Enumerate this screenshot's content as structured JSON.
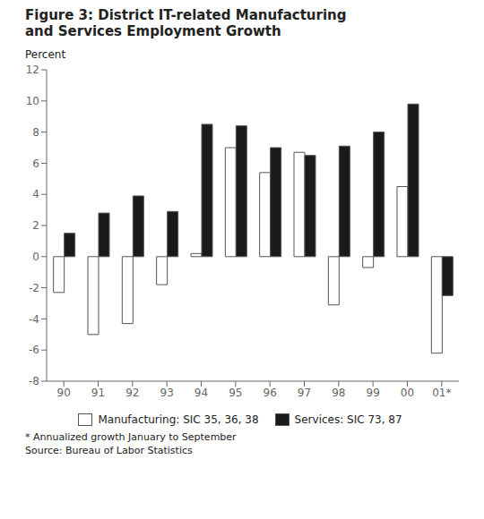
{
  "chart_data": {
    "type": "bar",
    "title": "Figure 3: District IT-related Manufacturing",
    "subtitle": "and Services Employment Growth",
    "y_label": "Percent",
    "categories": [
      "90",
      "91",
      "92",
      "93",
      "94",
      "95",
      "96",
      "97",
      "98",
      "99",
      "00",
      "01*"
    ],
    "series": [
      {
        "name": "Manufacturing: SIC 35, 36, 38",
        "color": "#ffffff",
        "values": [
          -2.3,
          -5.0,
          -4.3,
          -1.8,
          0.2,
          7.0,
          5.4,
          6.7,
          -3.1,
          -0.7,
          4.5,
          -6.2
        ]
      },
      {
        "name": "Services: SIC 73, 87",
        "color": "#1a1a1a",
        "values": [
          1.5,
          2.8,
          3.9,
          2.9,
          8.5,
          8.4,
          7.0,
          6.5,
          7.1,
          8.0,
          9.8,
          -2.5
        ]
      }
    ],
    "ylim": [
      -8,
      12
    ],
    "yticks": [
      -8,
      -6,
      -4,
      -2,
      0,
      2,
      4,
      6,
      8,
      10,
      12
    ],
    "grid": false,
    "legend": "bottom",
    "annotations": [
      "* Annualized growth January to September",
      "Source: Bureau of Labor Statistics"
    ]
  }
}
